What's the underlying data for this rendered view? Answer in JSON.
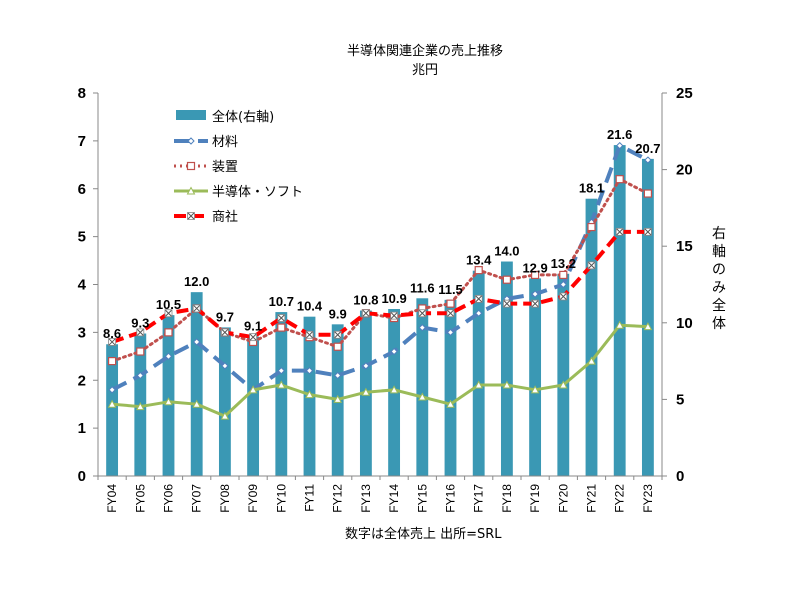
{
  "chart_data": {
    "type": "bar+line",
    "title": "半導体関連企業の売上推移",
    "subtitle": "兆円",
    "note": "数字は全体売上  出所=SRL",
    "y2label": "右軸のみ全体",
    "categories": [
      "FY04",
      "FY05",
      "FY06",
      "FY07",
      "FY08",
      "FY09",
      "FY10",
      "FY11",
      "FY12",
      "FY13",
      "FY14",
      "FY15",
      "FY16",
      "FY17",
      "FY18",
      "FY19",
      "FY20",
      "FY21",
      "FY22",
      "FY23"
    ],
    "ylim": [
      0,
      8
    ],
    "yticks": [
      "0",
      "1",
      "2",
      "3",
      "4",
      "5",
      "6",
      "7",
      "8"
    ],
    "y2lim": [
      0,
      25
    ],
    "y2ticks": [
      "0",
      "5",
      "10",
      "15",
      "20",
      "25"
    ],
    "bars": {
      "name": "全体(右軸)",
      "color": "#3a98b4",
      "values": [
        8.6,
        9.3,
        10.5,
        12.0,
        9.7,
        9.1,
        10.7,
        10.4,
        9.9,
        10.8,
        10.9,
        11.6,
        11.5,
        13.4,
        14.0,
        12.9,
        13.2,
        18.1,
        21.6,
        20.7
      ],
      "labels": [
        "8.6",
        "9.3",
        "10.5",
        "12.0",
        "9.7",
        "9.1",
        "10.7",
        "10.4",
        "9.9",
        "10.8",
        "10.9",
        "11.6",
        "11.5",
        "13.4",
        "14.0",
        "12.9",
        "13.2",
        "18.1",
        "21.6",
        "20.7"
      ]
    },
    "series": [
      {
        "name": "材料",
        "color": "#4f81bd",
        "dash": "long",
        "marker": "diamond",
        "values": [
          1.8,
          2.1,
          2.5,
          2.8,
          2.3,
          1.8,
          2.2,
          2.2,
          2.1,
          2.3,
          2.6,
          3.1,
          3.0,
          3.4,
          3.7,
          3.8,
          4.0,
          5.3,
          6.9,
          6.6
        ]
      },
      {
        "name": "装置",
        "color": "#c0504d",
        "dash": "dot",
        "marker": "square",
        "values": [
          2.4,
          2.6,
          3.0,
          3.5,
          3.0,
          2.8,
          3.1,
          2.9,
          2.7,
          3.4,
          3.3,
          3.5,
          3.6,
          4.3,
          4.1,
          4.2,
          4.2,
          5.2,
          6.2,
          5.9
        ]
      },
      {
        "name": "半導体・ソフト",
        "color": "#9bbb59",
        "dash": "solid",
        "marker": "triangle",
        "values": [
          1.5,
          1.45,
          1.55,
          1.5,
          1.25,
          1.8,
          1.9,
          1.7,
          1.6,
          1.75,
          1.8,
          1.65,
          1.5,
          1.9,
          1.9,
          1.8,
          1.9,
          2.4,
          3.15,
          3.12
        ]
      },
      {
        "name": "商社",
        "color": "#ff0000",
        "dash": "dash",
        "marker": "x",
        "values": [
          2.8,
          3.0,
          3.4,
          3.5,
          3.0,
          2.9,
          3.3,
          2.95,
          2.95,
          3.4,
          3.35,
          3.4,
          3.4,
          3.7,
          3.6,
          3.6,
          3.75,
          4.4,
          5.1,
          5.1
        ]
      }
    ],
    "legend": "top-left",
    "grid": false
  }
}
